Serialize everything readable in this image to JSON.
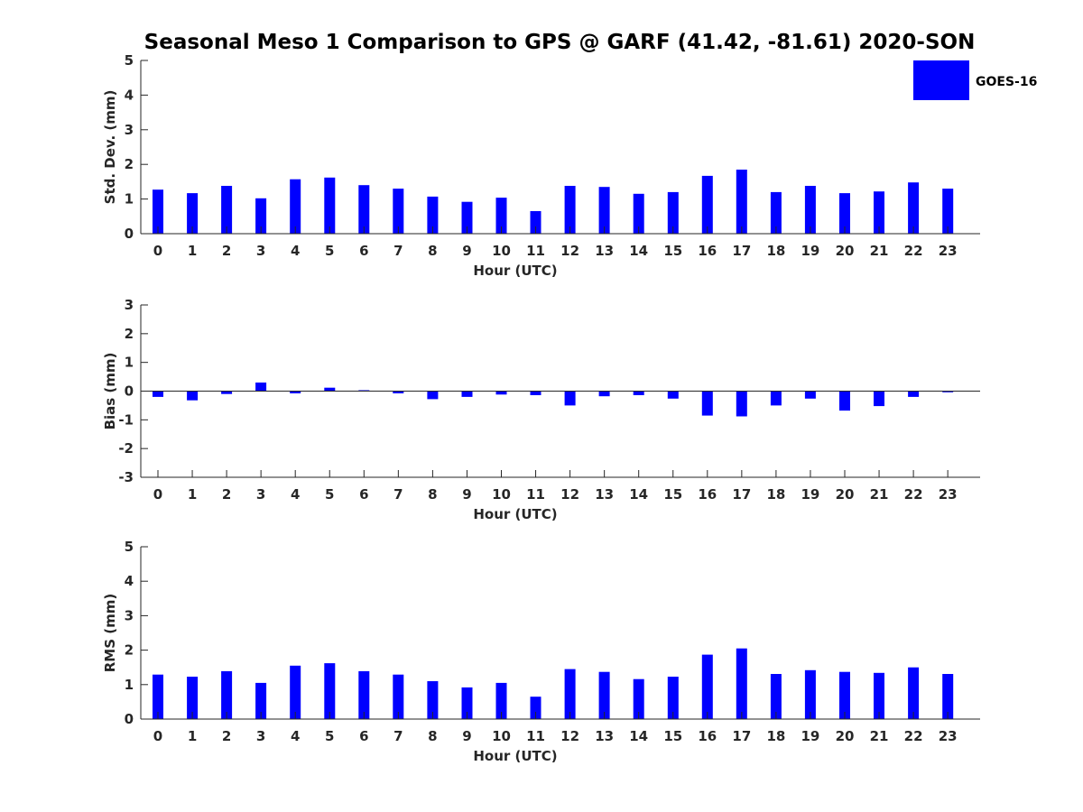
{
  "figure": {
    "title": "Seasonal Meso 1 Comparison to GPS @ GARF (41.42, -81.61) 2020-SON",
    "bar_color": "#0000ff",
    "legend": {
      "label": "GOES-16",
      "placement": "top-right"
    }
  },
  "chart_data": [
    {
      "type": "bar",
      "title": "Seasonal Meso 1 Comparison to GPS @ GARF (41.42, -81.61) 2020-SON",
      "xlabel": "Hour (UTC)",
      "ylabel": "Std. Dev. (mm)",
      "ylim": [
        0,
        5
      ],
      "yticks": [
        0,
        1,
        2,
        3,
        4,
        5
      ],
      "categories": [
        "0",
        "1",
        "2",
        "3",
        "4",
        "5",
        "6",
        "7",
        "8",
        "9",
        "10",
        "11",
        "12",
        "13",
        "14",
        "15",
        "16",
        "17",
        "18",
        "19",
        "20",
        "21",
        "22",
        "23"
      ],
      "series": [
        {
          "name": "GOES-16",
          "values": [
            1.27,
            1.17,
            1.38,
            1.02,
            1.57,
            1.62,
            1.4,
            1.3,
            1.07,
            0.92,
            1.04,
            0.65,
            1.38,
            1.35,
            1.15,
            1.2,
            1.67,
            1.85,
            1.2,
            1.38,
            1.17,
            1.22,
            1.48,
            1.3
          ]
        }
      ]
    },
    {
      "type": "bar",
      "xlabel": "Hour (UTC)",
      "ylabel": "Bias (mm)",
      "ylim": [
        -3,
        3
      ],
      "yticks": [
        -3,
        -2,
        -1,
        0,
        1,
        2,
        3
      ],
      "categories": [
        "0",
        "1",
        "2",
        "3",
        "4",
        "5",
        "6",
        "7",
        "8",
        "9",
        "10",
        "11",
        "12",
        "13",
        "14",
        "15",
        "16",
        "17",
        "18",
        "19",
        "20",
        "21",
        "22",
        "23"
      ],
      "series": [
        {
          "name": "GOES-16",
          "values": [
            -0.2,
            -0.32,
            -0.1,
            0.3,
            -0.08,
            0.12,
            0.03,
            -0.08,
            -0.28,
            -0.2,
            -0.12,
            -0.14,
            -0.5,
            -0.18,
            -0.14,
            -0.26,
            -0.85,
            -0.88,
            -0.5,
            -0.26,
            -0.68,
            -0.52,
            -0.2,
            -0.04
          ]
        }
      ]
    },
    {
      "type": "bar",
      "xlabel": "Hour (UTC)",
      "ylabel": "RMS (mm)",
      "ylim": [
        0,
        5
      ],
      "yticks": [
        0,
        1,
        2,
        3,
        4,
        5
      ],
      "categories": [
        "0",
        "1",
        "2",
        "3",
        "4",
        "5",
        "6",
        "7",
        "8",
        "9",
        "10",
        "11",
        "12",
        "13",
        "14",
        "15",
        "16",
        "17",
        "18",
        "19",
        "20",
        "21",
        "22",
        "23"
      ],
      "series": [
        {
          "name": "GOES-16",
          "values": [
            1.29,
            1.23,
            1.39,
            1.05,
            1.55,
            1.62,
            1.39,
            1.29,
            1.1,
            0.92,
            1.05,
            0.65,
            1.45,
            1.37,
            1.16,
            1.23,
            1.87,
            2.05,
            1.31,
            1.42,
            1.37,
            1.34,
            1.5,
            1.31
          ]
        }
      ]
    }
  ]
}
